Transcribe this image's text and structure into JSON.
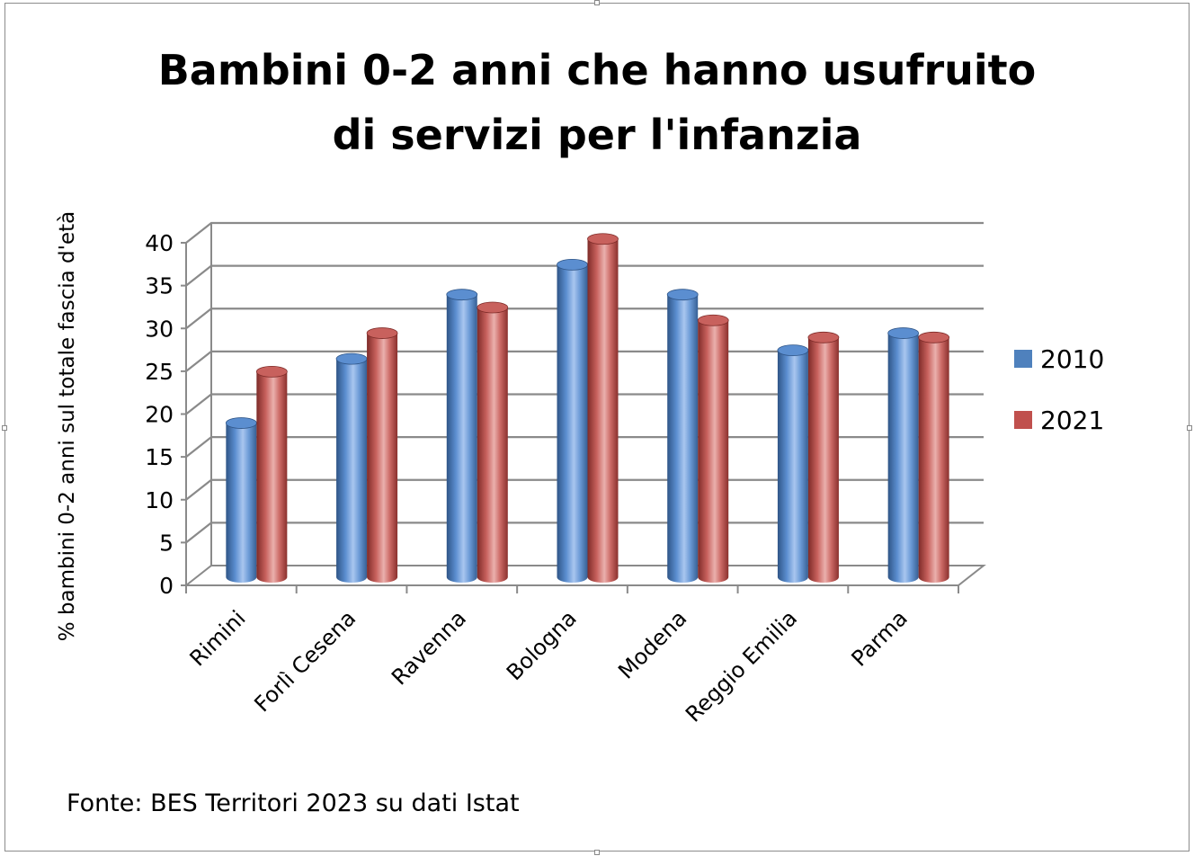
{
  "chart_data": {
    "type": "bar",
    "title_lines": [
      "Bambini 0-2 anni che hanno usufruito",
      "di servizi per l'infanzia"
    ],
    "ylabel": "% bambini 0-2 anni sul totale fascia d'età",
    "xlabel": "",
    "categories": [
      "Rimini",
      "Forlì Cesena",
      "Ravenna",
      "Bologna",
      "Modena",
      "Reggio Emilia",
      "Parma"
    ],
    "series": [
      {
        "name": "2010",
        "values": [
          18,
          25.5,
          33,
          36.5,
          33,
          26.5,
          28.5
        ],
        "color": "#4f81bd"
      },
      {
        "name": "2021",
        "values": [
          24,
          28.5,
          31.5,
          39.5,
          30,
          28,
          28
        ],
        "color": "#c0504d"
      }
    ],
    "ylim": [
      0,
      40
    ],
    "yticks": [
      "0",
      "5",
      "10",
      "15",
      "20",
      "25",
      "30",
      "35",
      "40"
    ],
    "grid": true,
    "style": "3d-cylinder",
    "legend_position": "right",
    "source": "Fonte: BES Territori 2023 su dati Istat"
  }
}
